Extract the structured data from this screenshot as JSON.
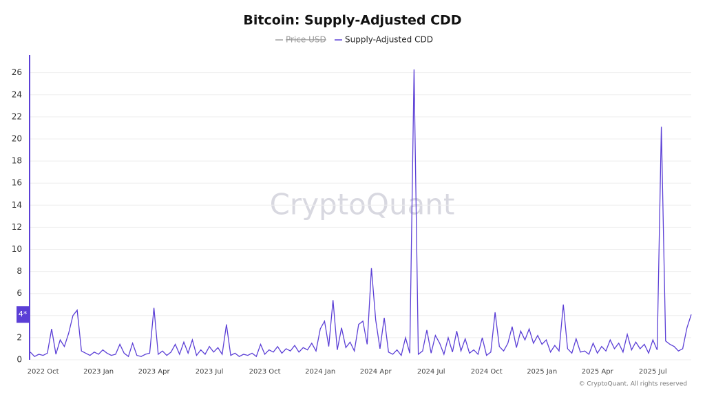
{
  "chart_data": {
    "type": "line",
    "title": "Bitcoin: Supply-Adjusted CDD",
    "hidden_series": [
      {
        "name": "Price USD",
        "color": "#a0a0a0"
      }
    ],
    "series": [
      {
        "name": "Supply-Adjusted CDD",
        "color": "#5b3fd6",
        "values": [
          0.7,
          0.3,
          0.5,
          0.4,
          0.6,
          2.8,
          0.5,
          1.8,
          1.2,
          2.4,
          4.0,
          4.5,
          0.8,
          0.6,
          0.4,
          0.7,
          0.5,
          0.9,
          0.6,
          0.4,
          0.5,
          1.4,
          0.6,
          0.3,
          1.5,
          0.4,
          0.3,
          0.5,
          0.6,
          4.7,
          0.5,
          0.8,
          0.4,
          0.7,
          1.4,
          0.5,
          1.6,
          0.6,
          1.8,
          0.4,
          0.9,
          0.5,
          1.2,
          0.7,
          1.1,
          0.5,
          3.2,
          0.4,
          0.6,
          0.3,
          0.5,
          0.4,
          0.6,
          0.3,
          1.4,
          0.5,
          0.9,
          0.7,
          1.2,
          0.6,
          1.0,
          0.8,
          1.3,
          0.7,
          1.1,
          0.9,
          1.5,
          0.8,
          2.8,
          3.5,
          1.2,
          5.4,
          0.9,
          2.9,
          1.1,
          1.6,
          0.8,
          3.2,
          3.5,
          1.4,
          8.3,
          3.6,
          1.0,
          3.8,
          0.7,
          0.5,
          0.9,
          0.4,
          2.0,
          0.6,
          26.3,
          0.5,
          0.8,
          2.7,
          0.6,
          2.2,
          1.5,
          0.5,
          2.0,
          0.7,
          2.6,
          0.8,
          1.9,
          0.6,
          0.9,
          0.5,
          2.0,
          0.4,
          0.7,
          4.3,
          1.2,
          0.8,
          1.5,
          3.0,
          1.1,
          2.6,
          1.8,
          2.8,
          1.5,
          2.2,
          1.4,
          1.8,
          0.7,
          1.3,
          0.8,
          5.0,
          1.0,
          0.6,
          1.9,
          0.7,
          0.8,
          0.5,
          1.5,
          0.6,
          1.2,
          0.8,
          1.8,
          1.0,
          1.5,
          0.7,
          2.3,
          0.9,
          1.6,
          1.0,
          1.4,
          0.6,
          1.8,
          0.9,
          21.1,
          1.7,
          1.4,
          1.2,
          0.8,
          1.0,
          2.9,
          4.1
        ]
      }
    ],
    "categories": [
      null,
      null,
      null,
      "2022 Oct",
      null,
      null,
      null,
      null,
      null,
      null,
      null,
      null,
      null,
      null,
      null,
      null,
      "2023 Jan",
      null,
      null,
      null,
      null,
      null,
      null,
      null,
      null,
      null,
      null,
      null,
      null,
      "2023 Apr",
      null,
      null,
      null,
      null,
      null,
      null,
      null,
      null,
      null,
      null,
      null,
      null,
      "2023 Jul",
      null,
      null,
      null,
      null,
      null,
      null,
      null,
      null,
      null,
      null,
      null,
      null,
      "2023 Oct",
      null,
      null,
      null,
      null,
      null,
      null,
      null,
      null,
      null,
      null,
      null,
      null,
      "2024 Jan",
      null,
      null,
      null,
      null,
      null,
      null,
      null,
      null,
      null,
      null,
      null,
      null,
      "2024 Apr",
      null,
      null,
      null,
      null,
      null,
      null,
      null,
      null,
      null,
      null,
      null,
      null,
      "2024 Jul",
      null,
      null,
      null,
      null,
      null,
      null,
      null,
      null,
      null,
      null,
      null,
      null,
      "2024 Oct",
      null,
      null,
      null,
      null,
      null,
      null,
      null,
      null,
      null,
      null,
      null,
      null,
      "2025 Jan",
      null,
      null,
      null,
      null,
      null,
      null,
      null,
      null,
      null,
      null,
      null,
      null,
      "2025 Apr",
      null,
      null,
      null,
      null,
      null,
      null,
      null,
      null,
      null,
      null,
      null,
      null,
      "2025 Jul",
      null,
      null,
      null,
      null,
      null,
      null,
      null,
      null,
      null
    ],
    "ylim": [
      0,
      27.6
    ],
    "yticks": [
      0,
      2,
      4,
      6,
      8,
      10,
      12,
      14,
      16,
      18,
      20,
      22,
      24,
      26
    ],
    "grid": true,
    "current_value_label": "4*",
    "watermark": "CryptoQuant",
    "copyright": "© CryptoQuant. All rights reserved"
  }
}
